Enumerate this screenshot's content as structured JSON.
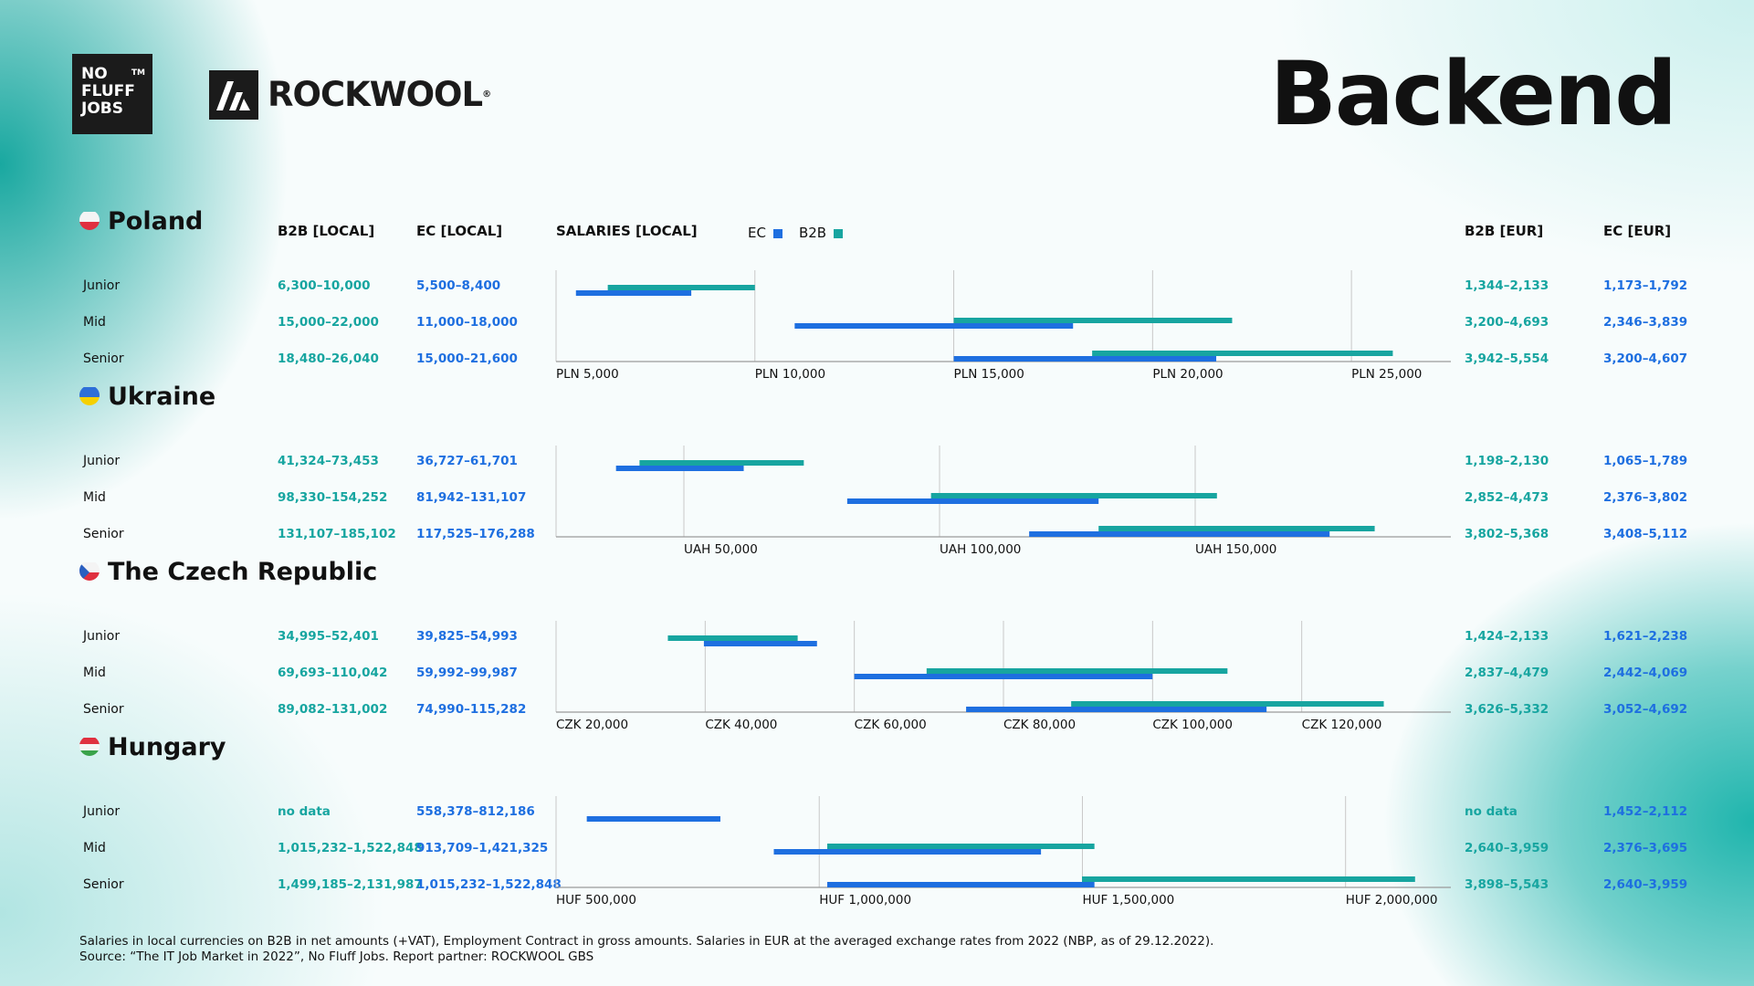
{
  "header": {
    "title": "Backend",
    "logo_nfj": [
      "NO",
      "FLUFF",
      "JOBS"
    ],
    "logo_nfj_tm": "TM",
    "logo_rockwool": "ROCKWOOL",
    "logo_rockwool_reg": "®"
  },
  "columns": {
    "b2b_local": "B2B [LOCAL]",
    "ec_local": "EC [LOCAL]",
    "salaries_local": "SALARIES [LOCAL]",
    "b2b_eur": "B2B [EUR]",
    "ec_eur": "EC [EUR]"
  },
  "legend": {
    "ec": "EC",
    "b2b": "B2B"
  },
  "colors": {
    "ec": "#1e6fe0",
    "b2b": "#17a5a0",
    "grid": "#c8c8c8",
    "axis": "#9a9a9a"
  },
  "countries": [
    {
      "name": "Poland",
      "flag": "poland-flag-icon",
      "rows": [
        {
          "level": "Junior",
          "b2b_local": "6,300–10,000",
          "ec_local": "5,500–8,400",
          "b2b_eur": "1,344–2,133",
          "ec_eur": "1,173–1,792"
        },
        {
          "level": "Mid",
          "b2b_local": "15,000–22,000",
          "ec_local": "11,000–18,000",
          "b2b_eur": "3,200–4,693",
          "ec_eur": "2,346–3,839"
        },
        {
          "level": "Senior",
          "b2b_local": "18,480–26,040",
          "ec_local": "15,000–21,600",
          "b2b_eur": "3,942–5,554",
          "ec_eur": "3,200–4,607"
        }
      ]
    },
    {
      "name": "Ukraine",
      "flag": "ukraine-flag-icon",
      "rows": [
        {
          "level": "Junior",
          "b2b_local": "41,324–73,453",
          "ec_local": "36,727–61,701",
          "b2b_eur": "1,198–2,130",
          "ec_eur": "1,065–1,789"
        },
        {
          "level": "Mid",
          "b2b_local": "98,330–154,252",
          "ec_local": "81,942–131,107",
          "b2b_eur": "2,852–4,473",
          "ec_eur": "2,376–3,802"
        },
        {
          "level": "Senior",
          "b2b_local": "131,107–185,102",
          "ec_local": "117,525–176,288",
          "b2b_eur": "3,802–5,368",
          "ec_eur": "3,408–5,112"
        }
      ]
    },
    {
      "name": "The Czech Republic",
      "flag": "czech-flag-icon",
      "rows": [
        {
          "level": "Junior",
          "b2b_local": "34,995–52,401",
          "ec_local": "39,825–54,993",
          "b2b_eur": "1,424–2,133",
          "ec_eur": "1,621–2,238"
        },
        {
          "level": "Mid",
          "b2b_local": "69,693–110,042",
          "ec_local": "59,992–99,987",
          "b2b_eur": "2,837–4,479",
          "ec_eur": "2,442–4,069"
        },
        {
          "level": "Senior",
          "b2b_local": "89,082–131,002",
          "ec_local": "74,990–115,282",
          "b2b_eur": "3,626–5,332",
          "ec_eur": "3,052–4,692"
        }
      ]
    },
    {
      "name": "Hungary",
      "flag": "hungary-flag-icon",
      "rows": [
        {
          "level": "Junior",
          "b2b_local": "no data",
          "ec_local": "558,378–812,186",
          "b2b_eur": "no data",
          "ec_eur": "1,452–2,112"
        },
        {
          "level": "Mid",
          "b2b_local": "1,015,232–1,522,848",
          "ec_local": "913,709–1,421,325",
          "b2b_eur": "2,640–3,959",
          "ec_eur": "2,376–3,695"
        },
        {
          "level": "Senior",
          "b2b_local": "1,499,185–2,131,987",
          "ec_local": "1,015,232–1,522,848",
          "b2b_eur": "3,898–5,543",
          "ec_eur": "2,640–3,959"
        }
      ]
    }
  ],
  "chart_data": [
    {
      "type": "bar",
      "orientation": "horizontal-range",
      "title": "Poland",
      "categories": [
        "Junior",
        "Mid",
        "Senior"
      ],
      "series": [
        {
          "name": "B2B",
          "ranges": [
            [
              6300,
              10000
            ],
            [
              15000,
              22000
            ],
            [
              18480,
              26040
            ]
          ]
        },
        {
          "name": "EC",
          "ranges": [
            [
              5500,
              8400
            ],
            [
              11000,
              18000
            ],
            [
              15000,
              21600
            ]
          ]
        }
      ],
      "xlim": [
        5000,
        27500
      ],
      "xticks": [
        5000,
        10000,
        15000,
        20000,
        25000
      ],
      "xtick_labels": [
        "PLN 5,000",
        "PLN 10,000",
        "PLN 15,000",
        "PLN 20,000",
        "PLN 25,000"
      ]
    },
    {
      "type": "bar",
      "orientation": "horizontal-range",
      "title": "Ukraine",
      "categories": [
        "Junior",
        "Mid",
        "Senior"
      ],
      "series": [
        {
          "name": "B2B",
          "ranges": [
            [
              41324,
              73453
            ],
            [
              98330,
              154252
            ],
            [
              131107,
              185102
            ]
          ]
        },
        {
          "name": "EC",
          "ranges": [
            [
              36727,
              61701
            ],
            [
              81942,
              131107
            ],
            [
              117525,
              176288
            ]
          ]
        }
      ],
      "xlim": [
        25000,
        200000
      ],
      "xticks": [
        50000,
        100000,
        150000
      ],
      "xtick_labels": [
        "UAH 50,000",
        "UAH 100,000",
        "UAH 150,000"
      ]
    },
    {
      "type": "bar",
      "orientation": "horizontal-range",
      "title": "The Czech Republic",
      "categories": [
        "Junior",
        "Mid",
        "Senior"
      ],
      "series": [
        {
          "name": "B2B",
          "ranges": [
            [
              34995,
              52401
            ],
            [
              69693,
              110042
            ],
            [
              89082,
              131002
            ]
          ]
        },
        {
          "name": "EC",
          "ranges": [
            [
              39825,
              54993
            ],
            [
              59992,
              99987
            ],
            [
              74990,
              115282
            ]
          ]
        }
      ],
      "xlim": [
        20000,
        140000
      ],
      "xticks": [
        20000,
        40000,
        60000,
        80000,
        100000,
        120000
      ],
      "xtick_labels": [
        "CZK 20,000",
        "CZK 40,000",
        "CZK 60,000",
        "CZK 80,000",
        "CZK 100,000",
        "CZK 120,000"
      ]
    },
    {
      "type": "bar",
      "orientation": "horizontal-range",
      "title": "Hungary",
      "categories": [
        "Junior",
        "Mid",
        "Senior"
      ],
      "series": [
        {
          "name": "B2B",
          "ranges": [
            null,
            [
              1015232,
              1522848
            ],
            [
              1499185,
              2131987
            ]
          ]
        },
        {
          "name": "EC",
          "ranges": [
            [
              558378,
              812186
            ],
            [
              913709,
              1421325
            ],
            [
              1015232,
              1522848
            ]
          ]
        }
      ],
      "xlim": [
        500000,
        2200000
      ],
      "xticks": [
        500000,
        1000000,
        1500000,
        2000000
      ],
      "xtick_labels": [
        "HUF 500,000",
        "HUF 1,000,000",
        "HUF 1,500,000",
        "HUF 2,000,000"
      ]
    }
  ],
  "footer": {
    "line1": "Salaries in local currencies on B2B in net amounts (+VAT), Employment Contract in gross amounts. Salaries in EUR at the averaged exchange rates from 2022 (NBP, as of 29.12.2022).",
    "line2": "Source: “The IT Job Market in 2022”, No Fluff Jobs. Report partner: ROCKWOOL GBS"
  }
}
